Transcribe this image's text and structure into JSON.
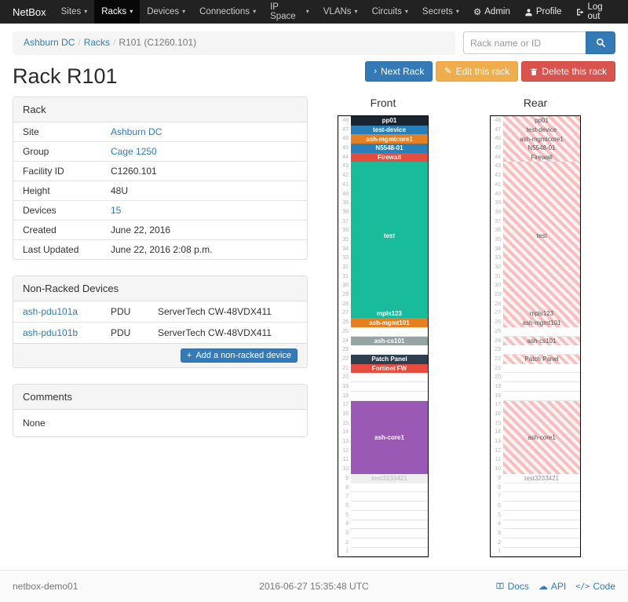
{
  "icons": {
    "caret": "▾",
    "gear": "⚙",
    "pencil": "✎",
    "chevron_right": "›",
    "cloud": "☁",
    "plus": "+",
    "code_glyph": "</>"
  },
  "navbar": {
    "brand": "NetBox",
    "items": [
      {
        "label": "Sites"
      },
      {
        "label": "Racks"
      },
      {
        "label": "Devices"
      },
      {
        "label": "Connections"
      },
      {
        "label": "IP Space"
      },
      {
        "label": "VLANs"
      },
      {
        "label": "Circuits"
      },
      {
        "label": "Secrets"
      }
    ],
    "admin": "Admin",
    "profile": "Profile",
    "logout": "Log out"
  },
  "breadcrumb": {
    "site": "Ashburn DC",
    "section": "Racks",
    "current": "R101 (C1260.101)"
  },
  "search": {
    "placeholder": "Rack name or ID"
  },
  "actions": {
    "next": "Next Rack",
    "edit": "Edit this rack",
    "delete": "Delete this rack"
  },
  "page_title": "Rack R101",
  "rack_panel": {
    "title": "Rack",
    "rows": [
      {
        "label": "Site",
        "value": "Ashburn DC"
      },
      {
        "label": "Group",
        "value": "Cage 1250"
      },
      {
        "label": "Facility ID",
        "value": "C1260.101"
      },
      {
        "label": "Height",
        "value": "48U"
      },
      {
        "label": "Devices",
        "value": "15"
      },
      {
        "label": "Created",
        "value": "June 22, 2016"
      },
      {
        "label": "Last Updated",
        "value": "June 22, 2016 2:08 p.m."
      }
    ]
  },
  "nonracked_panel": {
    "title": "Non-Racked Devices",
    "rows": [
      {
        "name": "ash-pdu101a",
        "role": "PDU",
        "type": "ServerTech CW-48VDX411"
      },
      {
        "name": "ash-pdu101b",
        "role": "PDU",
        "type": "ServerTech CW-48VDX411"
      }
    ],
    "add_label": "Add a non-racked device"
  },
  "comments_panel": {
    "title": "Comments",
    "body": "None"
  },
  "elevations": {
    "front_title": "Front",
    "rear_title": "Rear",
    "units_total": 48,
    "devices": [
      {
        "name": "pp01",
        "top_u": 48,
        "height": 1,
        "color": "#1a252f"
      },
      {
        "name": "test-device",
        "top_u": 47,
        "height": 1,
        "color": "#2980b9"
      },
      {
        "name": "ash-mgmtcore1",
        "top_u": 46,
        "height": 1,
        "color": "#e67e22"
      },
      {
        "name": "N5548-01",
        "top_u": 45,
        "height": 1,
        "color": "#2980b9"
      },
      {
        "name": "Firewall",
        "top_u": 44,
        "height": 1,
        "color": "#e74c3c"
      },
      {
        "name": "test",
        "top_u": 43,
        "height": 16,
        "color": "#18bc9c"
      },
      {
        "name": "mpls123",
        "top_u": 27,
        "height": 1,
        "color": "#18bc9c"
      },
      {
        "name": "ash-mgmt101",
        "top_u": 26,
        "height": 1,
        "color": "#e67e22"
      },
      {
        "name": "ash-cs101",
        "top_u": 24,
        "height": 1,
        "color": "#95a5a6"
      },
      {
        "name": "Patch Panel",
        "top_u": 22,
        "height": 1,
        "color": "#2c3e50"
      },
      {
        "name": "Fortinet FW",
        "top_u": 21,
        "height": 1,
        "color": "#e74c3c",
        "front_only": true
      },
      {
        "name": "ash-core1",
        "top_u": 17,
        "height": 8,
        "color": "#9b59b6"
      },
      {
        "name": "test3233421",
        "top_u": 9,
        "height": 1,
        "color": "#efefef",
        "text_color": "#c9c9c9",
        "rear_plain": true
      }
    ]
  },
  "footer": {
    "hostname": "netbox-demo01",
    "timestamp": "2016-06-27 15:35:48 UTC",
    "docs": "Docs",
    "api": "API",
    "code": "Code"
  }
}
